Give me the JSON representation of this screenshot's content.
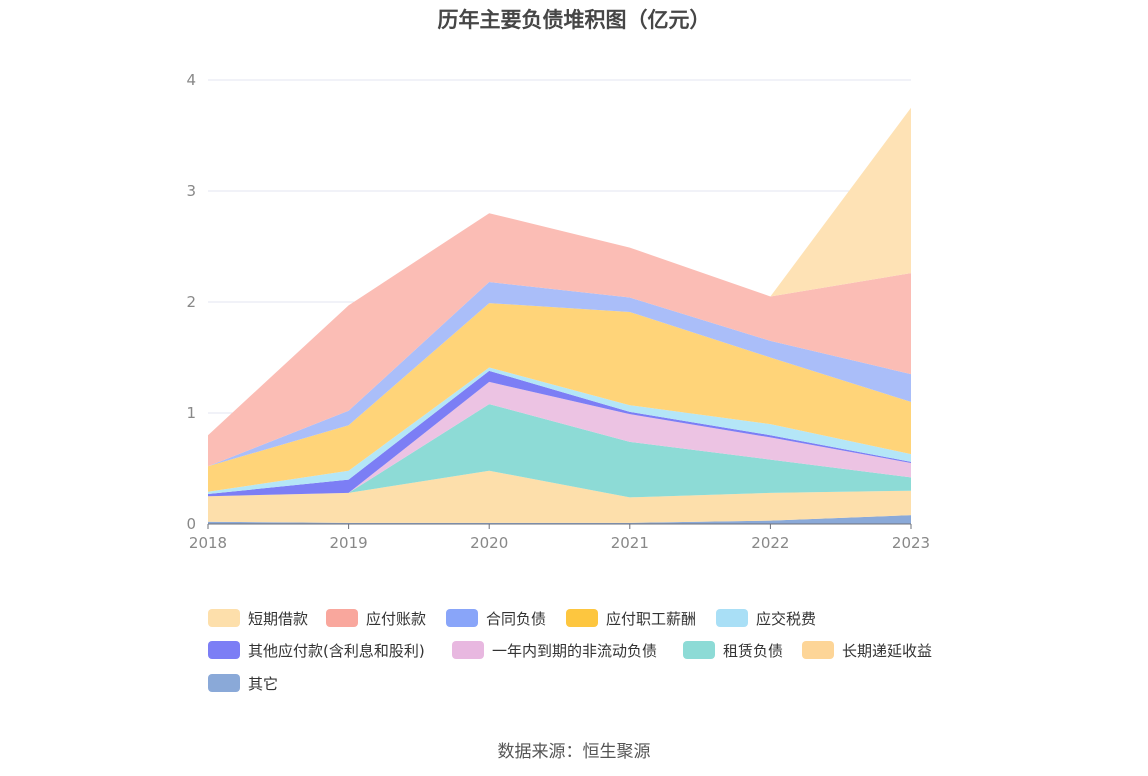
{
  "chart_data": {
    "type": "area",
    "title": "历年主要负债堆积图（亿元）",
    "source": "数据来源：恒生聚源",
    "stacked": true,
    "categories": [
      "2018",
      "2019",
      "2020",
      "2021",
      "2022",
      "2023"
    ],
    "ylim": [
      0,
      4
    ],
    "yticks": [
      "0",
      "1",
      "2",
      "3",
      "4"
    ],
    "grid": true,
    "legend_position": "bottom",
    "series": [
      {
        "name": "其它",
        "color": "#8aa9d8",
        "values": [
          0.02,
          0.01,
          0.01,
          0.01,
          0.03,
          0.08
        ]
      },
      {
        "name": "短期借款",
        "color": "#fddfab",
        "values": [
          0.23,
          0.27,
          0.47,
          0.23,
          0.25,
          0.22
        ]
      },
      {
        "name": "租赁负债",
        "color": "#8ddbd6",
        "values": [
          0,
          0,
          0.6,
          0.5,
          0.3,
          0.12
        ]
      },
      {
        "name": "一年内到期的非流动负债",
        "color": "#ecc3e3",
        "values": [
          0,
          0,
          0.2,
          0.25,
          0.2,
          0.13
        ]
      },
      {
        "name": "其他应付款(含利息和股利)",
        "color": "#7c7ef5",
        "values": [
          0.02,
          0.12,
          0.1,
          0.02,
          0.02,
          0.01
        ]
      },
      {
        "name": "应交税费",
        "color": "#b4e6f7",
        "values": [
          0.02,
          0.08,
          0.03,
          0.06,
          0.1,
          0.07
        ]
      },
      {
        "name": "应付职工薪酬",
        "color": "#ffd479",
        "values": [
          0.23,
          0.41,
          0.58,
          0.84,
          0.6,
          0.47
        ]
      },
      {
        "name": "合同负债",
        "color": "#aabef9",
        "values": [
          0,
          0.13,
          0.19,
          0.13,
          0.15,
          0.25
        ]
      },
      {
        "name": "应付账款",
        "color": "#fbbdb5",
        "values": [
          0.28,
          0.95,
          0.62,
          0.45,
          0.4,
          0.91
        ]
      },
      {
        "name": "长期递延收益",
        "color": "#fee2b5",
        "values": [
          0,
          0,
          0,
          0,
          0,
          1.49
        ]
      }
    ]
  },
  "legend_items": [
    {
      "label": "短期借款",
      "color": "#fddfab"
    },
    {
      "label": "应付账款",
      "color": "#f9a79d"
    },
    {
      "label": "合同负债",
      "color": "#89a5f9"
    },
    {
      "label": "应付职工薪酬",
      "color": "#fdc63f"
    },
    {
      "label": "应交税费",
      "color": "#a9dff6"
    },
    {
      "label": "其他应付款(含利息和股利)",
      "color": "#7c7ef5"
    },
    {
      "label": "一年内到期的非流动负债",
      "color": "#e8b8e0"
    },
    {
      "label": "租赁负债",
      "color": "#8ddbd6"
    },
    {
      "label": "长期递延收益",
      "color": "#fdd597"
    },
    {
      "label": "其它",
      "color": "#8aa9d8"
    }
  ]
}
